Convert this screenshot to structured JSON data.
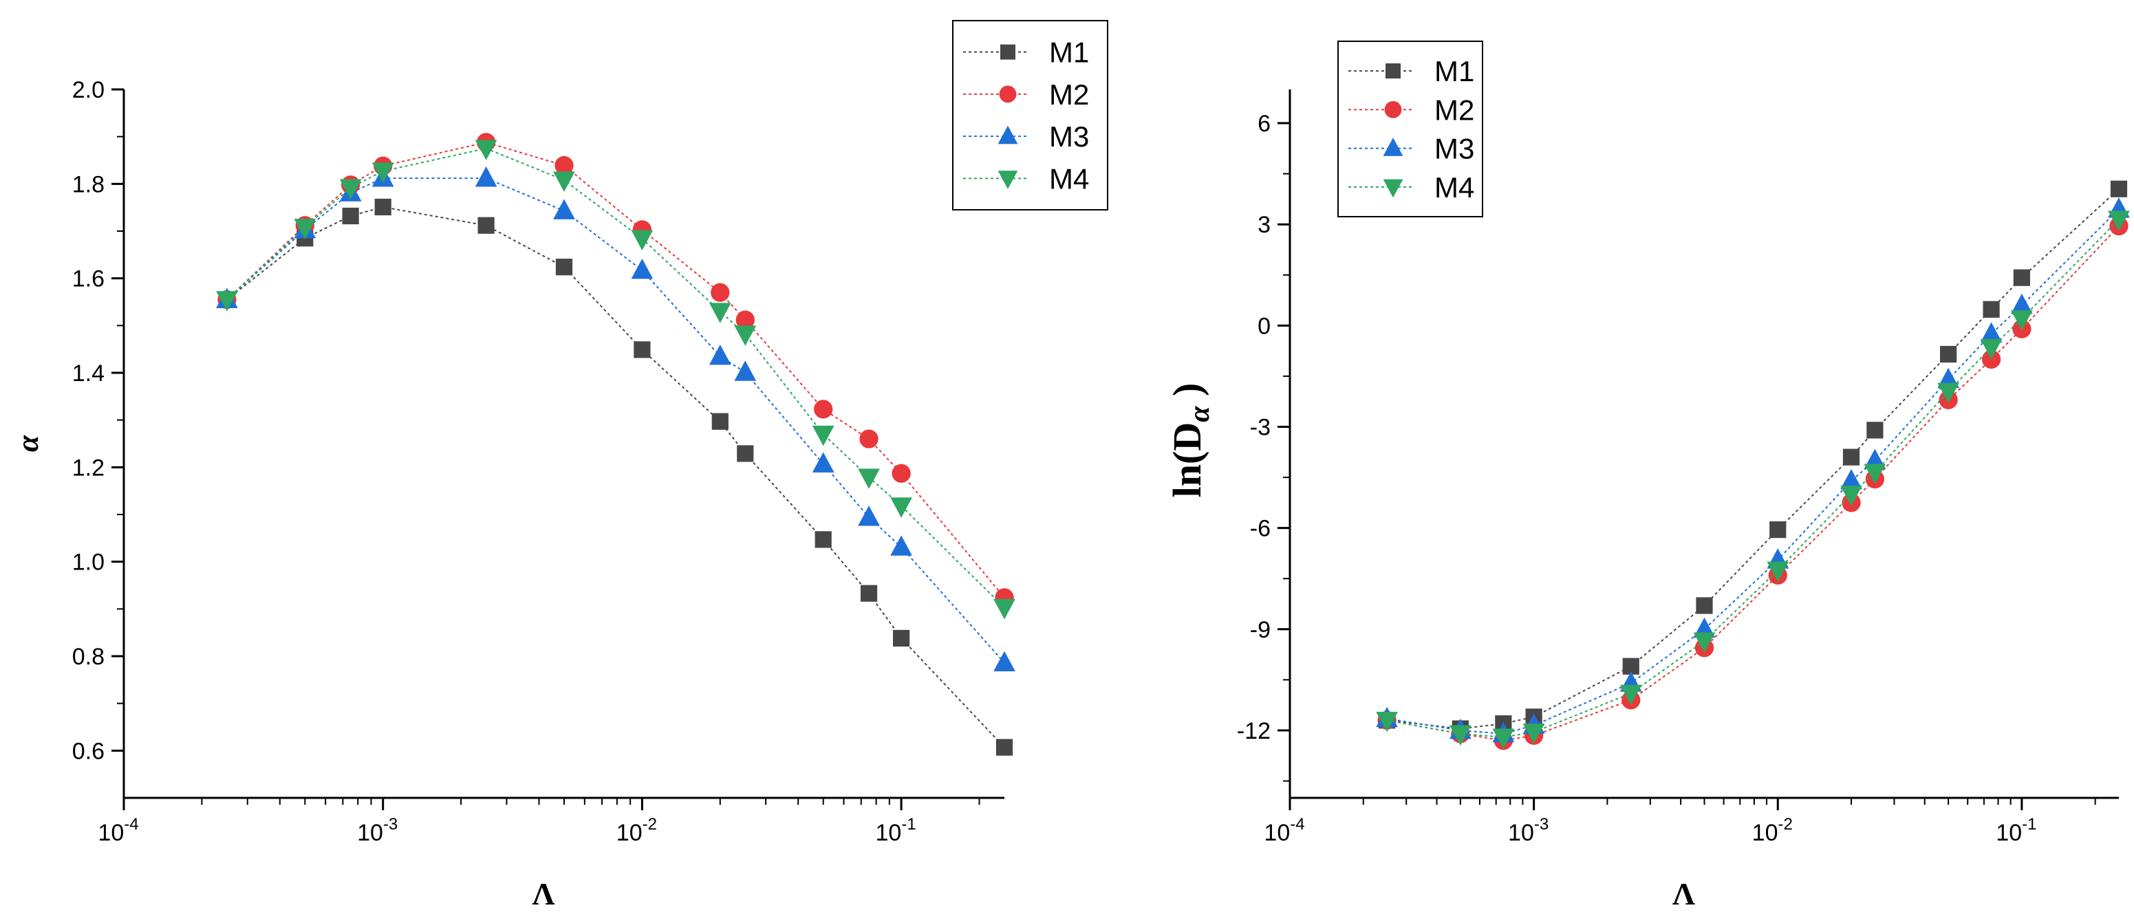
{
  "chart_data": [
    {
      "type": "line",
      "xscale": "log",
      "xlim": [
        0.0001,
        0.25
      ],
      "ylim": [
        0.5,
        2.0
      ],
      "xlabel": "Λ",
      "ylabel": "α",
      "xticks": [
        {
          "label": "10",
          "exp": "-4"
        },
        {
          "label": "10",
          "exp": "-3"
        },
        {
          "label": "10",
          "exp": "-2"
        },
        {
          "label": "10",
          "exp": "-1"
        }
      ],
      "yticks": [
        "0.6",
        "0.8",
        "1.0",
        "1.2",
        "1.4",
        "1.6",
        "1.8",
        "2.0"
      ],
      "x": [
        0.00025,
        0.0005,
        0.00075,
        0.001,
        0.0025,
        0.005,
        0.01,
        0.02,
        0.025,
        0.05,
        0.075,
        0.1,
        0.25
      ],
      "legend_position": "top-right",
      "series": [
        {
          "name": "M1",
          "color": "#474747",
          "marker": "square",
          "values": [
            1.555,
            1.685,
            1.732,
            1.751,
            1.712,
            1.624,
            1.449,
            1.297,
            1.229,
            1.047,
            0.933,
            0.838,
            0.607
          ]
        },
        {
          "name": "M2",
          "color": "#e8383b",
          "marker": "circle",
          "values": [
            1.555,
            1.712,
            1.798,
            1.838,
            1.888,
            1.839,
            1.703,
            1.57,
            1.512,
            1.323,
            1.26,
            1.187,
            0.924
          ]
        },
        {
          "name": "M3",
          "color": "#1f6fd8",
          "marker": "triangle-up",
          "values": [
            1.555,
            1.703,
            1.781,
            1.812,
            1.812,
            1.743,
            1.617,
            1.435,
            1.401,
            1.207,
            1.094,
            1.031,
            0.786
          ]
        },
        {
          "name": "M4",
          "color": "#2ea660",
          "marker": "triangle-down",
          "values": [
            1.555,
            1.708,
            1.792,
            1.827,
            1.875,
            1.808,
            1.684,
            1.53,
            1.482,
            1.27,
            1.179,
            1.118,
            0.903
          ]
        }
      ]
    },
    {
      "type": "line",
      "xscale": "log",
      "xlim": [
        0.0001,
        0.25
      ],
      "ylim": [
        -14,
        7
      ],
      "xlabel": "Λ",
      "ylabel_main": "ln(D",
      "ylabel_sub": "α",
      "ylabel_end": " )",
      "xticks": [
        {
          "label": "10",
          "exp": "-4"
        },
        {
          "label": "10",
          "exp": "-3"
        },
        {
          "label": "10",
          "exp": "-2"
        },
        {
          "label": "10",
          "exp": "-1"
        }
      ],
      "yticks": [
        "-12",
        "-9",
        "-6",
        "-3",
        "0",
        "3",
        "6"
      ],
      "x": [
        0.00025,
        0.0005,
        0.00075,
        0.001,
        0.0025,
        0.005,
        0.01,
        0.02,
        0.025,
        0.05,
        0.075,
        0.1,
        0.25
      ],
      "legend_position": "top-left",
      "series": [
        {
          "name": "M1",
          "color": "#474747",
          "marker": "square",
          "values": [
            -11.7,
            -11.95,
            -11.8,
            -11.6,
            -10.1,
            -8.3,
            -6.05,
            -3.9,
            -3.1,
            -0.85,
            0.48,
            1.42,
            4.05
          ]
        },
        {
          "name": "M2",
          "color": "#e8383b",
          "marker": "circle",
          "values": [
            -11.7,
            -12.1,
            -12.3,
            -12.15,
            -11.1,
            -9.55,
            -7.4,
            -5.25,
            -4.55,
            -2.2,
            -1.0,
            -0.1,
            2.95
          ]
        },
        {
          "name": "M3",
          "color": "#1f6fd8",
          "marker": "triangle-up",
          "values": [
            -11.65,
            -12.0,
            -12.1,
            -11.85,
            -10.6,
            -9.0,
            -6.95,
            -4.6,
            -4.0,
            -1.6,
            -0.25,
            0.6,
            3.45
          ]
        },
        {
          "name": "M4",
          "color": "#2ea660",
          "marker": "triangle-down",
          "values": [
            -11.7,
            -12.1,
            -12.2,
            -12.05,
            -10.9,
            -9.35,
            -7.25,
            -5.0,
            -4.35,
            -1.95,
            -0.65,
            0.2,
            3.15
          ]
        }
      ]
    }
  ]
}
